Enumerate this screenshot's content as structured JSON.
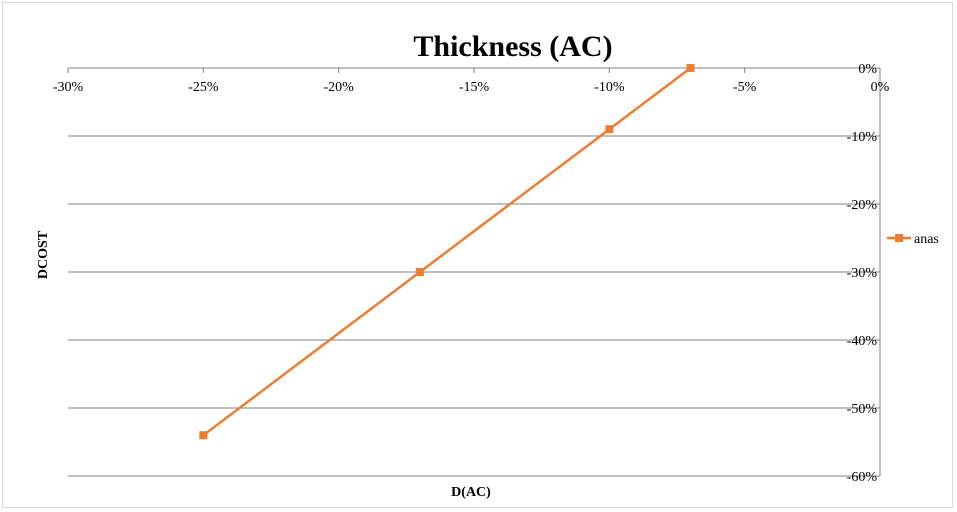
{
  "chart_data": {
    "type": "line",
    "title": "Thickness (AC)",
    "xlabel": "D(AC)",
    "ylabel": "DCOST",
    "xlim": [
      -0.3,
      0.0
    ],
    "ylim": [
      -0.6,
      0.0
    ],
    "x_ticks": [
      -0.3,
      -0.25,
      -0.2,
      -0.15,
      -0.1,
      -0.05,
      0.0
    ],
    "x_tick_labels": [
      "-30%",
      "-25%",
      "-20%",
      "-15%",
      "-10%",
      "-5%",
      "0%"
    ],
    "y_ticks": [
      0.0,
      -0.1,
      -0.2,
      -0.3,
      -0.4,
      -0.5,
      -0.6
    ],
    "y_tick_labels": [
      "0%",
      "-10%",
      "-20%",
      "-30%",
      "-40%",
      "-50%",
      "-60%"
    ],
    "grid": "horizontal",
    "legend_position": "right",
    "series": [
      {
        "name": "anas",
        "color": "#ED7D31",
        "marker": "square",
        "x": [
          -0.25,
          -0.17,
          -0.1,
          -0.07
        ],
        "y": [
          -0.54,
          -0.3,
          -0.09,
          0.0
        ]
      }
    ]
  }
}
